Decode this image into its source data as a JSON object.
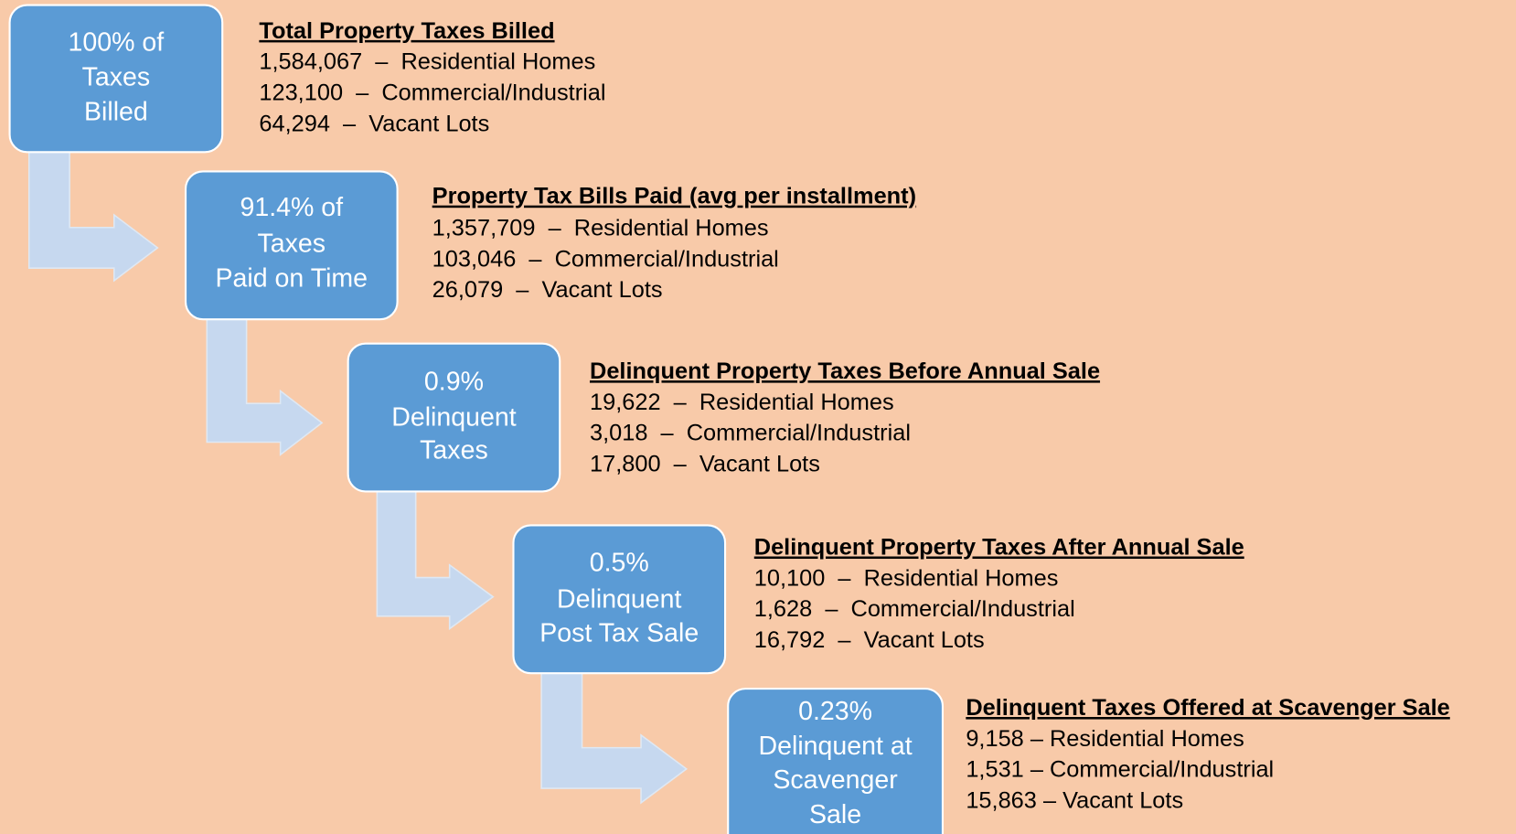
{
  "steps": [
    {
      "box_lines": [
        "100% of",
        "Taxes",
        "Billed"
      ],
      "heading": "Total Property Taxes Billed",
      "items": [
        "1,584,067  –  Residential Homes",
        "123,100  –  Commercial/Industrial",
        "64,294  –  Vacant Lots"
      ]
    },
    {
      "box_lines": [
        "91.4% of",
        "Taxes",
        "Paid on Time"
      ],
      "heading": "Property Tax Bills Paid (avg per installment)",
      "items": [
        "1,357,709  –  Residential Homes",
        "103,046  –  Commercial/Industrial",
        "26,079  –  Vacant Lots"
      ]
    },
    {
      "box_lines": [
        "0.9%",
        "Delinquent",
        "Taxes"
      ],
      "heading": "Delinquent Property Taxes Before Annual Sale",
      "items": [
        "19,622  –  Residential Homes",
        "3,018  –  Commercial/Industrial",
        "17,800  –  Vacant Lots"
      ]
    },
    {
      "box_lines": [
        "0.5%",
        "Delinquent",
        "Post Tax Sale"
      ],
      "heading": "Delinquent Property Taxes After Annual Sale",
      "items": [
        "10,100  –  Residential Homes",
        "1,628  –  Commercial/Industrial",
        "16,792  –  Vacant Lots"
      ]
    },
    {
      "box_lines": [
        "0.23%",
        "Delinquent at",
        "Scavenger",
        "Sale"
      ],
      "heading": "Delinquent Taxes Offered at Scavenger Sale",
      "items": [
        "9,158 – Residential Homes",
        "1,531 – Commercial/Industrial",
        "15,863 – Vacant Lots"
      ]
    }
  ]
}
